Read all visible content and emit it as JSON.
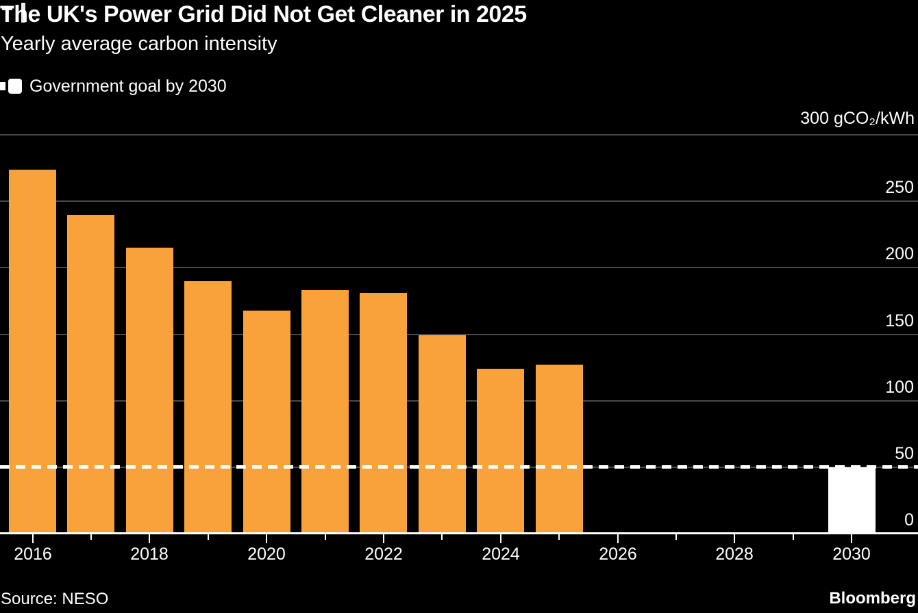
{
  "colors": {
    "background": "#000000",
    "text": "#FFFFFF",
    "bar": "#F9A23B",
    "goal": "#FFFFFF",
    "grid": "#4A4A4A"
  },
  "footer": {
    "source": "Source: NESO",
    "brand": "Bloomberg"
  },
  "chart_data": {
    "type": "bar",
    "title": "The UK's Power Grid Did Not Get Cleaner in 2025",
    "subtitle": "Yearly average carbon intensity",
    "unit_top_label": "300 gCO₂/kWh",
    "ylabel": "gCO₂/kWh",
    "xlabel": "",
    "ylim": [
      0,
      300
    ],
    "yticks": [
      0,
      50,
      100,
      150,
      200,
      250,
      300
    ],
    "grid": true,
    "legend_position": "top-left",
    "legend": [
      {
        "label": "Government goal by 2030",
        "marker": "dash-and-bar",
        "color": "#FFFFFF"
      }
    ],
    "x_range": [
      2016,
      2030
    ],
    "x_labeled_years": [
      2016,
      2018,
      2020,
      2022,
      2024,
      2026,
      2028,
      2030
    ],
    "bars": [
      {
        "year": 2016,
        "value": 274,
        "color": "#F9A23B",
        "role": "actual"
      },
      {
        "year": 2017,
        "value": 240,
        "color": "#F9A23B",
        "role": "actual"
      },
      {
        "year": 2018,
        "value": 215,
        "color": "#F9A23B",
        "role": "actual"
      },
      {
        "year": 2019,
        "value": 190,
        "color": "#F9A23B",
        "role": "actual"
      },
      {
        "year": 2020,
        "value": 168,
        "color": "#F9A23B",
        "role": "actual"
      },
      {
        "year": 2021,
        "value": 183,
        "color": "#F9A23B",
        "role": "actual"
      },
      {
        "year": 2022,
        "value": 181,
        "color": "#F9A23B",
        "role": "actual"
      },
      {
        "year": 2023,
        "value": 149,
        "color": "#F9A23B",
        "role": "actual"
      },
      {
        "year": 2024,
        "value": 124,
        "color": "#F9A23B",
        "role": "actual"
      },
      {
        "year": 2025,
        "value": 127,
        "color": "#F9A23B",
        "role": "actual"
      },
      {
        "year": 2030,
        "value": 50,
        "color": "#FFFFFF",
        "role": "goal"
      }
    ],
    "goal_line": {
      "value": 50,
      "style": "dashed",
      "color": "#FFFFFF",
      "label": "Government goal by 2030"
    }
  }
}
